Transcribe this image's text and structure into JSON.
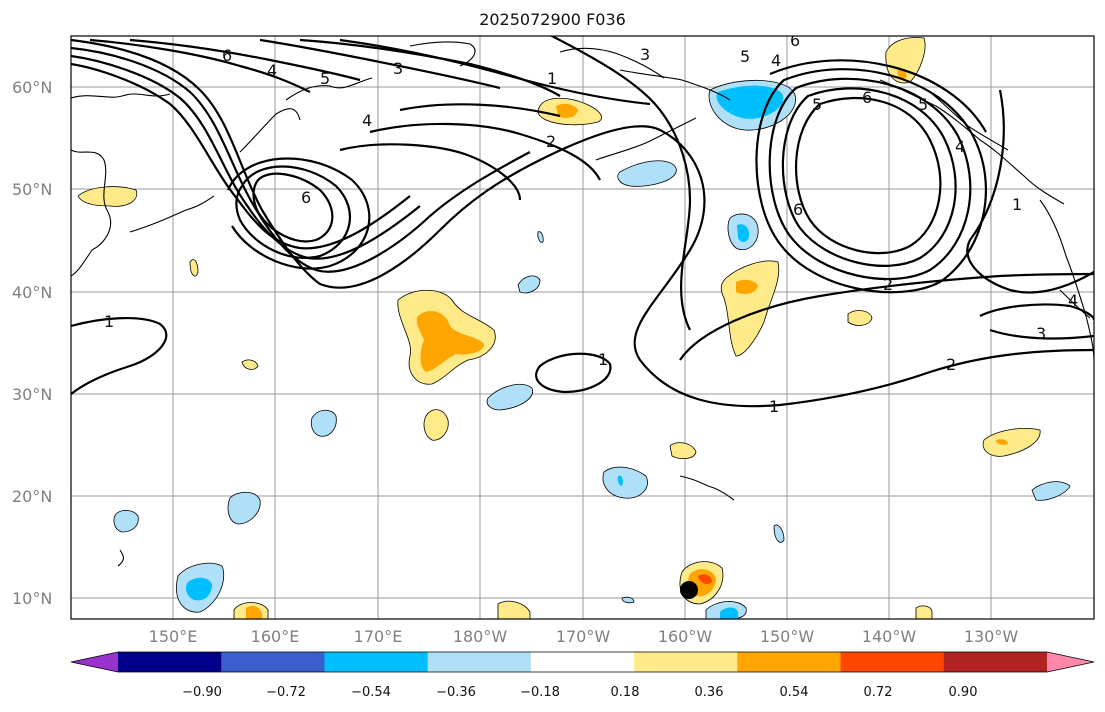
{
  "title": "2025072900 F036",
  "latitude_labels": [
    "60°N",
    "50°N",
    "40°N",
    "30°N",
    "20°N",
    "10°N"
  ],
  "longitude_labels": [
    "150°E",
    "160°E",
    "170°E",
    "180°W",
    "170°W",
    "160°W",
    "150°W",
    "140°W",
    "130°W"
  ],
  "colorbar": {
    "ticks": [
      "−0.90",
      "−0.72",
      "−0.54",
      "−0.36",
      "−0.18",
      "0.18",
      "0.36",
      "0.54",
      "0.72",
      "0.90"
    ],
    "colors": [
      "#9a32cd",
      "#00008b",
      "#3a5fcd",
      "#00bfff",
      "#b0e0f8",
      "#ffffff",
      "#ffea8a",
      "#ffa500",
      "#ff4500",
      "#b22222",
      "#ff88aa"
    ]
  },
  "contour_labels": [
    "6",
    "4",
    "5",
    "3",
    "1",
    "4",
    "2",
    "6",
    "6",
    "5",
    "4",
    "3",
    "5",
    "6",
    "6",
    "5",
    "4",
    "1",
    "2",
    "1",
    "2",
    "3",
    "1",
    "1",
    "4"
  ]
}
